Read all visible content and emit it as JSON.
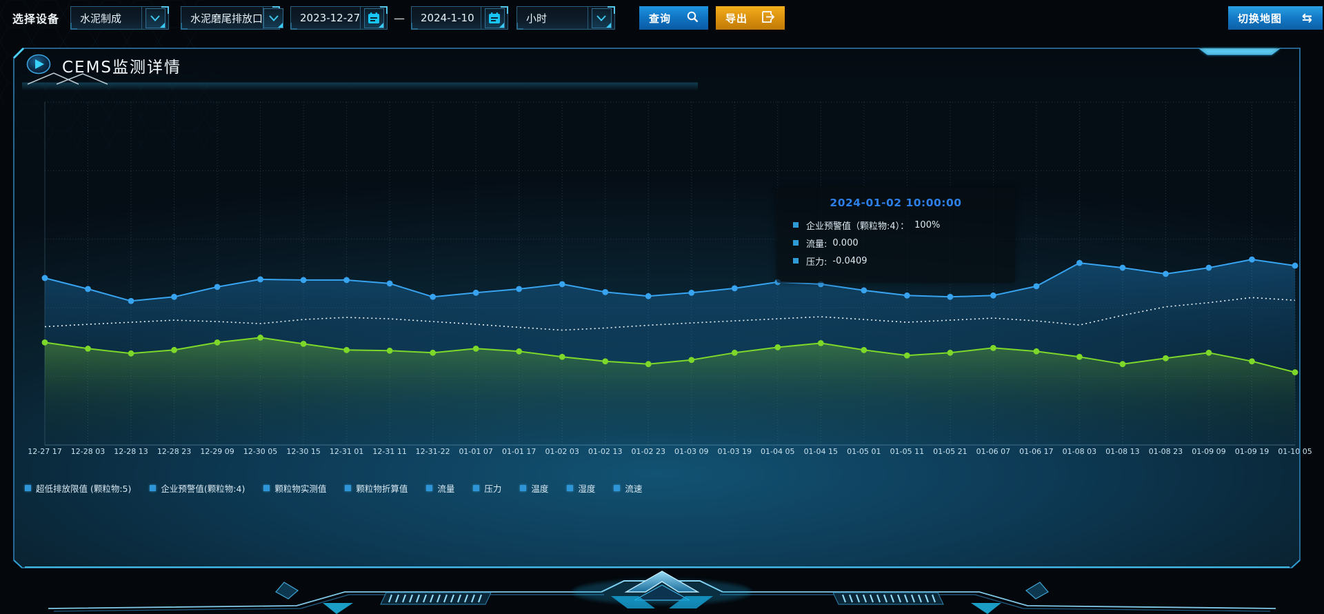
{
  "toolbar": {
    "device_label": "选择设备",
    "device_select": "水泥制成",
    "port_select": "水泥磨尾排放口",
    "date_from": "2023-12-27",
    "date_separator": "—",
    "date_to": "2024-1-10",
    "interval_select": "小时",
    "query_label": "查询",
    "export_label": "导出",
    "switch_map_label": "切换地图",
    "switch_map_icon": "⇆"
  },
  "panel": {
    "title": "CEMS监测详情"
  },
  "tooltip": {
    "title": "2024-01-02 10:00:00",
    "items": [
      {
        "label": "企业预警值（颗粒物:4）：",
        "value": "100%"
      },
      {
        "label": "流量:",
        "value": "0.000"
      },
      {
        "label": "压力:",
        "value": "-0.0409"
      }
    ]
  },
  "legend": {
    "items": [
      "超低排放限值 (颗粒物:5)",
      "企业预警值(颗粒物:4)",
      "颗粒物实测值",
      "颗粒物折算值",
      "流量",
      "压力",
      "温度",
      "湿度",
      "流速"
    ],
    "marker_color": "#2e96d8"
  },
  "colors": {
    "accent_cyan": "#35c6f4",
    "query_blue": "#1286d8",
    "export_orange": "#e09a10",
    "tooltip_title_blue": "#2d7fe8",
    "panel_border": "#2f7fb5"
  },
  "chart_data": {
    "type": "line",
    "title": "",
    "xlabel": "",
    "ylabel": "",
    "x_labels": [
      "12-27 17",
      "12-28 03",
      "12-28 13",
      "12-28 23",
      "12-29 09",
      "12-30 05",
      "12-30 15",
      "12-31 01",
      "12-31 11",
      "12-31-22",
      "01-01 07",
      "01-01 17",
      "01-02 03",
      "01-02 13",
      "01-02 23",
      "01-03 09",
      "01-03 19",
      "01-04 05",
      "01-04 15",
      "01-05 01",
      "01-05 11",
      "01-05 21",
      "01-06 07",
      "01-06 17",
      "01-08 03",
      "01-08 13",
      "01-08 23",
      "01-09 09",
      "01-09 19",
      "01-10 05"
    ],
    "ylim": [
      0,
      100
    ],
    "y_axis_visible": false,
    "grid": true,
    "legend_position": "bottom",
    "note": "No y-axis tick labels are visible in the screenshot; values are estimated as percent of plot height (0 = x-axis, 100 = plot top). Mapping of the three visible lines to the tooltip series names is inferred from tooltip order.",
    "series": [
      {
        "name": "企业预警值(颗粒物:4)",
        "color": "#38a4f0",
        "line_style": "solid",
        "markers": true,
        "area": "blue",
        "values": [
          48.7,
          45.5,
          42.0,
          43.2,
          46.1,
          48.3,
          48.1,
          48.1,
          47.1,
          43.2,
          44.4,
          45.5,
          46.9,
          44.6,
          43.4,
          44.4,
          45.7,
          47.5,
          46.9,
          45.1,
          43.6,
          43.2,
          43.6,
          46.3,
          53.1,
          51.7,
          49.9,
          51.7,
          54.1,
          52.3
        ]
      },
      {
        "name": "流量",
        "color": "#e9f4f8",
        "line_style": "dotted",
        "markers": false,
        "area": null,
        "values": [
          34.5,
          35.2,
          35.8,
          36.4,
          36.0,
          35.4,
          36.6,
          37.2,
          36.8,
          36.0,
          35.2,
          34.3,
          33.5,
          34.1,
          34.9,
          35.6,
          36.2,
          36.8,
          37.4,
          36.6,
          35.8,
          36.4,
          37.0,
          36.2,
          35.0,
          37.8,
          40.3,
          41.5,
          43.0,
          42.2
        ]
      },
      {
        "name": "压力",
        "color": "#7dd829",
        "line_style": "solid",
        "markers": true,
        "area": "green",
        "values": [
          29.9,
          28.1,
          26.7,
          27.7,
          29.9,
          31.3,
          29.5,
          27.7,
          27.5,
          26.9,
          28.1,
          27.3,
          25.7,
          24.4,
          23.6,
          24.8,
          26.9,
          28.5,
          29.7,
          27.7,
          26.1,
          26.9,
          28.3,
          27.3,
          25.7,
          23.6,
          25.3,
          26.9,
          24.4,
          21.2
        ]
      }
    ]
  }
}
